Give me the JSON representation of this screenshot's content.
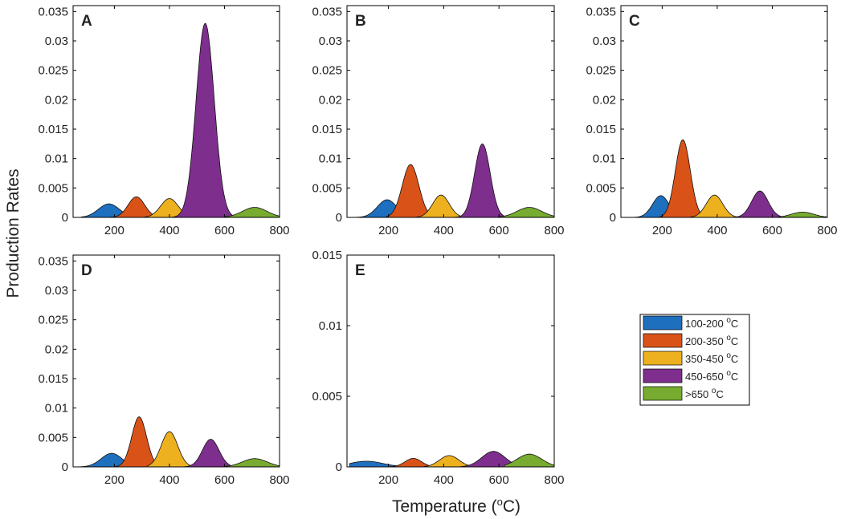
{
  "figure": {
    "ylabel": "Production Rates",
    "xlabel_main": "Temperature (",
    "xlabel_sup": "o",
    "xlabel_end": "C)"
  },
  "chart_data": [
    {
      "type": "area",
      "panel": "A",
      "xlim": [
        50,
        800
      ],
      "ylim": [
        0,
        0.036
      ],
      "xticks": [
        200,
        400,
        600,
        800
      ],
      "yticks": [
        0,
        0.005,
        0.01,
        0.015,
        0.02,
        0.025,
        0.03,
        0.035
      ],
      "series": [
        {
          "name": "100-200 °C",
          "peak_x": 180,
          "peak_y": 0.0023,
          "width": 38,
          "x_start": 80,
          "x_end": 230
        },
        {
          "name": "200-350 °C",
          "peak_x": 280,
          "peak_y": 0.0035,
          "width": 30,
          "x_start": 180,
          "x_end": 380
        },
        {
          "name": "350-450 °C",
          "peak_x": 400,
          "peak_y": 0.0032,
          "width": 32,
          "x_start": 310,
          "x_end": 490
        },
        {
          "name": "450-650 °C",
          "peak_x": 530,
          "peak_y": 0.033,
          "width": 33,
          "x_start": 410,
          "x_end": 660
        },
        {
          "name": ">650 °C",
          "peak_x": 710,
          "peak_y": 0.0017,
          "width": 45,
          "x_start": 600,
          "x_end": 800
        }
      ]
    },
    {
      "type": "area",
      "panel": "B",
      "xlim": [
        50,
        800
      ],
      "ylim": [
        0,
        0.036
      ],
      "xticks": [
        200,
        400,
        600,
        800
      ],
      "yticks": [
        0,
        0.005,
        0.01,
        0.015,
        0.02,
        0.025,
        0.03,
        0.035
      ],
      "series": [
        {
          "name": "100-200 °C",
          "peak_x": 195,
          "peak_y": 0.003,
          "width": 35,
          "x_start": 80,
          "x_end": 240
        },
        {
          "name": "200-350 °C",
          "peak_x": 280,
          "peak_y": 0.009,
          "width": 30,
          "x_start": 190,
          "x_end": 370
        },
        {
          "name": "350-450 °C",
          "peak_x": 390,
          "peak_y": 0.0038,
          "width": 30,
          "x_start": 300,
          "x_end": 470
        },
        {
          "name": "450-650 °C",
          "peak_x": 540,
          "peak_y": 0.0125,
          "width": 28,
          "x_start": 430,
          "x_end": 640
        },
        {
          "name": ">650 °C",
          "peak_x": 710,
          "peak_y": 0.0017,
          "width": 45,
          "x_start": 600,
          "x_end": 800
        }
      ]
    },
    {
      "type": "area",
      "panel": "C",
      "xlim": [
        50,
        800
      ],
      "ylim": [
        0,
        0.036
      ],
      "xticks": [
        200,
        400,
        600,
        800
      ],
      "yticks": [
        0,
        0.005,
        0.01,
        0.015,
        0.02,
        0.025,
        0.03,
        0.035
      ],
      "series": [
        {
          "name": "100-200 °C",
          "peak_x": 195,
          "peak_y": 0.0037,
          "width": 30,
          "x_start": 90,
          "x_end": 240
        },
        {
          "name": "200-350 °C",
          "peak_x": 275,
          "peak_y": 0.0132,
          "width": 27,
          "x_start": 190,
          "x_end": 360
        },
        {
          "name": "350-450 °C",
          "peak_x": 390,
          "peak_y": 0.0038,
          "width": 30,
          "x_start": 300,
          "x_end": 470
        },
        {
          "name": "450-650 °C",
          "peak_x": 555,
          "peak_y": 0.0045,
          "width": 30,
          "x_start": 450,
          "x_end": 650
        },
        {
          "name": ">650 °C",
          "peak_x": 710,
          "peak_y": 0.0009,
          "width": 40,
          "x_start": 620,
          "x_end": 800
        }
      ]
    },
    {
      "type": "area",
      "panel": "D",
      "xlim": [
        50,
        800
      ],
      "ylim": [
        0,
        0.036
      ],
      "xticks": [
        200,
        400,
        600,
        800
      ],
      "yticks": [
        0,
        0.005,
        0.01,
        0.015,
        0.02,
        0.025,
        0.03,
        0.035
      ],
      "series": [
        {
          "name": "100-200 °C",
          "peak_x": 190,
          "peak_y": 0.0023,
          "width": 38,
          "x_start": 80,
          "x_end": 240
        },
        {
          "name": "200-350 °C",
          "peak_x": 290,
          "peak_y": 0.0085,
          "width": 27,
          "x_start": 200,
          "x_end": 370
        },
        {
          "name": "350-450 °C",
          "peak_x": 400,
          "peak_y": 0.006,
          "width": 30,
          "x_start": 320,
          "x_end": 480
        },
        {
          "name": "450-650 °C",
          "peak_x": 550,
          "peak_y": 0.0047,
          "width": 30,
          "x_start": 440,
          "x_end": 640
        },
        {
          "name": ">650 °C",
          "peak_x": 710,
          "peak_y": 0.0014,
          "width": 45,
          "x_start": 600,
          "x_end": 800
        }
      ]
    },
    {
      "type": "area",
      "panel": "E",
      "xlim": [
        50,
        800
      ],
      "ylim": [
        0,
        0.015
      ],
      "xticks": [
        200,
        400,
        600,
        800
      ],
      "yticks": [
        0,
        0.005,
        0.01,
        0.015
      ],
      "series": [
        {
          "name": "100-200 °C",
          "peak_x": 120,
          "peak_y": 0.0004,
          "width": 60,
          "x_start": 60,
          "x_end": 230
        },
        {
          "name": "200-350 °C",
          "peak_x": 290,
          "peak_y": 0.0006,
          "width": 30,
          "x_start": 200,
          "x_end": 360
        },
        {
          "name": "350-450 °C",
          "peak_x": 420,
          "peak_y": 0.0008,
          "width": 35,
          "x_start": 330,
          "x_end": 500
        },
        {
          "name": "450-650 °C",
          "peak_x": 580,
          "peak_y": 0.0011,
          "width": 42,
          "x_start": 460,
          "x_end": 680
        },
        {
          "name": ">650 °C",
          "peak_x": 710,
          "peak_y": 0.0009,
          "width": 45,
          "x_start": 620,
          "x_end": 800
        }
      ]
    }
  ],
  "legend": {
    "items": [
      {
        "range": "100-200 ",
        "sup": "o",
        "unit": "C",
        "color": "#1f6fbf"
      },
      {
        "range": "200-350 ",
        "sup": "o",
        "unit": "C",
        "color": "#d95319"
      },
      {
        "range": "350-450 ",
        "sup": "o",
        "unit": "C",
        "color": "#edb120"
      },
      {
        "range": "450-650 ",
        "sup": "o",
        "unit": "C",
        "color": "#7e2f8e"
      },
      {
        "range": ">650 ",
        "sup": "o",
        "unit": "C",
        "color": "#77ac30"
      }
    ]
  }
}
